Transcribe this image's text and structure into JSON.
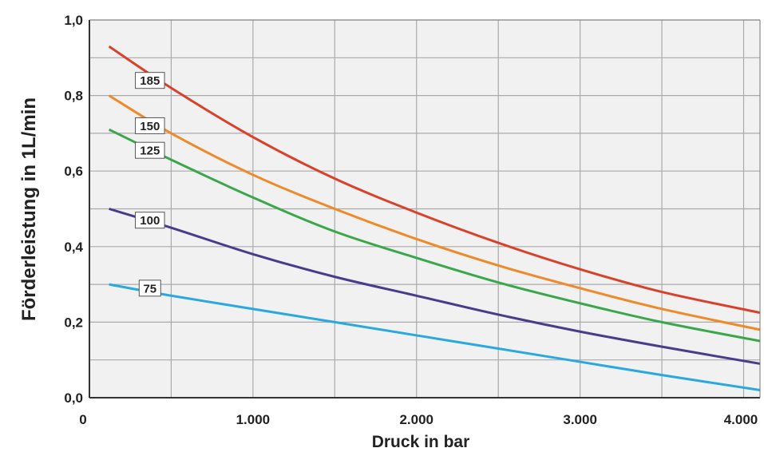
{
  "chart_data": {
    "type": "line",
    "xlabel": "Druck  in  bar",
    "ylabel": "Förderleistung in 1L/min",
    "xlim": [
      0,
      4100
    ],
    "ylim": [
      0,
      1.0
    ],
    "x_ticks": [
      {
        "value": 0,
        "label": "0"
      },
      {
        "value": 1000,
        "label": "1.000"
      },
      {
        "value": 2000,
        "label": "2.000"
      },
      {
        "value": 3000,
        "label": "3.000"
      },
      {
        "value": 4000,
        "label": "4.000"
      }
    ],
    "y_ticks": [
      {
        "value": 0,
        "label": "0,0"
      },
      {
        "value": 0.2,
        "label": "0,2"
      },
      {
        "value": 0.4,
        "label": "0,4"
      },
      {
        "value": 0.6,
        "label": "0,6"
      },
      {
        "value": 0.8,
        "label": "0,8"
      },
      {
        "value": 1.0,
        "label": "1,0"
      }
    ],
    "grid": true,
    "x_grid_step": 500,
    "y_grid_step": 0.1,
    "colors": {
      "plot_background": "#f1f1f1",
      "grid": "#aaaaaa"
    },
    "series": [
      {
        "label": "185",
        "color": "#d9412a",
        "label_at": [
          370,
          0.84
        ],
        "x": [
          120,
          500,
          1000,
          1500,
          2000,
          2500,
          3000,
          3500,
          4100
        ],
        "y": [
          0.93,
          0.82,
          0.69,
          0.58,
          0.49,
          0.41,
          0.34,
          0.28,
          0.225
        ]
      },
      {
        "label": "150",
        "color": "#ef8a2a",
        "label_at": [
          370,
          0.72
        ],
        "x": [
          120,
          500,
          1000,
          1500,
          2000,
          2500,
          3000,
          3500,
          4100
        ],
        "y": [
          0.8,
          0.7,
          0.59,
          0.5,
          0.42,
          0.35,
          0.29,
          0.235,
          0.18
        ]
      },
      {
        "label": "125",
        "color": "#3aa84a",
        "label_at": [
          370,
          0.655
        ],
        "x": [
          120,
          500,
          1000,
          1500,
          2000,
          2500,
          3000,
          3500,
          4100
        ],
        "y": [
          0.71,
          0.63,
          0.53,
          0.44,
          0.37,
          0.305,
          0.25,
          0.2,
          0.15
        ]
      },
      {
        "label": "100",
        "color": "#4a3c8c",
        "label_at": [
          370,
          0.47
        ],
        "x": [
          120,
          500,
          1000,
          1500,
          2000,
          2500,
          3000,
          3500,
          4100
        ],
        "y": [
          0.5,
          0.45,
          0.38,
          0.32,
          0.27,
          0.22,
          0.175,
          0.135,
          0.09
        ]
      },
      {
        "label": "75",
        "color": "#2aa8e0",
        "label_at": [
          370,
          0.29
        ],
        "x": [
          120,
          500,
          1000,
          1500,
          2000,
          2500,
          3000,
          3500,
          4100
        ],
        "y": [
          0.3,
          0.27,
          0.235,
          0.2,
          0.165,
          0.13,
          0.095,
          0.06,
          0.02
        ]
      }
    ]
  }
}
